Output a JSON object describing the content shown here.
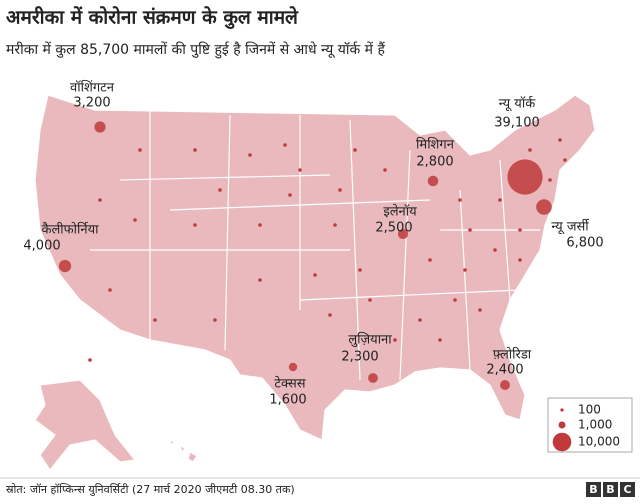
{
  "header": {
    "title": "अमरीका में कोरोना संक्रमण के कुल मामले",
    "subtitle": "मरीका में कुल 85,700 मामलों की पुष्टि हुई है जिनमें से आधे न्यू यॉर्क में हैं"
  },
  "map": {
    "points": [
      {
        "name": "वॉशिंगटन",
        "value_label": "3,200",
        "value": 3200
      },
      {
        "name": "कैलीफोर्निया",
        "value_label": "4,000",
        "value": 4000
      },
      {
        "name": "न्यू यॉर्क",
        "value_label": "39,100",
        "value": 39100
      },
      {
        "name": "न्यू जर्सी",
        "value_label": "6,800",
        "value": 6800
      },
      {
        "name": "मिशिगन",
        "value_label": "2,800",
        "value": 2800
      },
      {
        "name": "इलेनॉय",
        "value_label": "2,500",
        "value": 2500
      },
      {
        "name": "लुज़ियाना",
        "value_label": "2,300",
        "value": 2300
      },
      {
        "name": "टेक्सस",
        "value_label": "1,600",
        "value": 1600
      },
      {
        "name": "फ़्लोरिडा",
        "value_label": "2,400",
        "value": 2400
      }
    ]
  },
  "legend": {
    "items": [
      {
        "value": 100,
        "label": "100"
      },
      {
        "value": 1000,
        "label": "1,000"
      },
      {
        "value": 10000,
        "label": "10,000"
      }
    ]
  },
  "footer": {
    "source": "स्रोत: जॉन हॉप्किन्स युनिवर्सिटी (27 मार्च 2020 जीएमटी 08.30 तक)",
    "logo": [
      "B",
      "B",
      "C"
    ]
  }
}
